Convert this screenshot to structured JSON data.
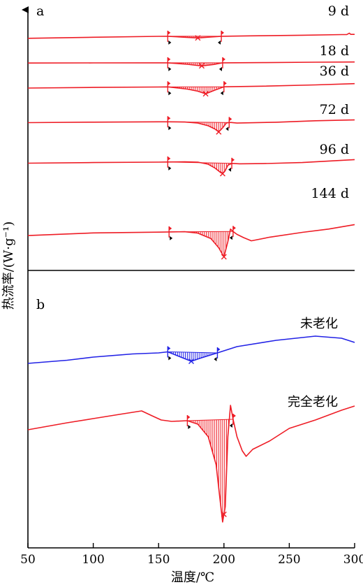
{
  "chart_data": {
    "type": "line",
    "xlabel": "温度/℃",
    "ylabel": "热流率/(W·g⁻¹)",
    "xlim": [
      50,
      300
    ],
    "x_ticks": [
      50,
      100,
      150,
      200,
      250,
      300
    ],
    "grid": false,
    "colors": {
      "red": "#ee1c25",
      "blue": "#2222e6",
      "axis": "#000000",
      "marker": "#000000"
    },
    "panels": [
      {
        "label": "a",
        "series": [
          {
            "name": "9 d",
            "color": "#ee1c25",
            "onset": 157,
            "peak": 180,
            "end": 198,
            "points": [
              [
                50,
                3.5
              ],
              [
                100,
                4.5
              ],
              [
                150,
                5.3
              ],
              [
                157,
                5.4
              ],
              [
                170,
                4.5
              ],
              [
                180,
                3.8
              ],
              [
                190,
                4.7
              ],
              [
                198,
                5.4
              ],
              [
                220,
                5.8
              ],
              [
                260,
                6.4
              ],
              [
                290,
                7.0
              ],
              [
                294,
                7.1
              ],
              [
                296,
                8.4
              ],
              [
                297,
                7.2
              ],
              [
                300,
                7.2
              ]
            ]
          },
          {
            "name": "18 d",
            "color": "#ee1c25",
            "onset": 157,
            "peak": 183,
            "end": 199,
            "points": [
              [
                50,
                3.2
              ],
              [
                100,
                3.3
              ],
              [
                150,
                3.4
              ],
              [
                157,
                3.4
              ],
              [
                172,
                2.0
              ],
              [
                183,
                0.5
              ],
              [
                192,
                1.8
              ],
              [
                199,
                3.4
              ],
              [
                230,
                3.6
              ],
              [
                270,
                4.0
              ],
              [
                300,
                4.2
              ]
            ]
          },
          {
            "name": "36 d",
            "color": "#ee1c25",
            "onset": 157,
            "peak": 186,
            "end": 200,
            "points": [
              [
                50,
                4.0
              ],
              [
                100,
                4.6
              ],
              [
                150,
                5.0
              ],
              [
                157,
                5.1
              ],
              [
                172,
                3.0
              ],
              [
                180,
                1.0
              ],
              [
                186,
                -1.5
              ],
              [
                193,
                2.0
              ],
              [
                200,
                5.2
              ],
              [
                230,
                5.8
              ],
              [
                270,
                7.0
              ],
              [
                300,
                8.2
              ]
            ]
          },
          {
            "name": "72 d",
            "color": "#ee1c25",
            "onset": 157,
            "peak": 196,
            "end": 204,
            "points": [
              [
                50,
                3.0
              ],
              [
                100,
                3.5
              ],
              [
                150,
                3.8
              ],
              [
                157,
                3.8
              ],
              [
                170,
                3.6
              ],
              [
                180,
                2.6
              ],
              [
                188,
                0.0
              ],
              [
                193,
                -3.0
              ],
              [
                196,
                -5.8
              ],
              [
                199,
                -2.0
              ],
              [
                202,
                2.8
              ],
              [
                205,
                3.2
              ],
              [
                210,
                2.6
              ],
              [
                240,
                3.4
              ],
              [
                270,
                4.8
              ],
              [
                300,
                5.6
              ]
            ]
          },
          {
            "name": "96 d",
            "color": "#ee1c25",
            "onset": 157,
            "peak": 199,
            "end": 206,
            "points": [
              [
                50,
                3.0
              ],
              [
                100,
                3.6
              ],
              [
                150,
                4.0
              ],
              [
                157,
                4.1
              ],
              [
                170,
                4.3
              ],
              [
                180,
                4.0
              ],
              [
                188,
                2.0
              ],
              [
                193,
                -1.5
              ],
              [
                197,
                -5.5
              ],
              [
                199,
                -7.0
              ],
              [
                201,
                -4.0
              ],
              [
                203,
                1.0
              ],
              [
                206,
                2.8
              ],
              [
                212,
                2.4
              ],
              [
                230,
                2.6
              ],
              [
                260,
                3.6
              ],
              [
                300,
                6.4
              ]
            ]
          },
          {
            "name": "144 d",
            "color": "#ee1c25",
            "onset": 158,
            "peak": 200,
            "end": 207,
            "points": [
              [
                50,
                1.0
              ],
              [
                100,
                2.3
              ],
              [
                150,
                2.7
              ],
              [
                158,
                2.8
              ],
              [
                170,
                2.9
              ],
              [
                180,
                2.2
              ],
              [
                190,
                -0.5
              ],
              [
                196,
                -5.0
              ],
              [
                200,
                -9.5
              ],
              [
                203,
                -2.0
              ],
              [
                205,
                4.2
              ],
              [
                207,
                3.0
              ],
              [
                210,
                1.6
              ],
              [
                215,
                0.0
              ],
              [
                221,
                -1.6
              ],
              [
                235,
                0.2
              ],
              [
                260,
                2.6
              ],
              [
                280,
                4.2
              ],
              [
                300,
                6.4
              ]
            ]
          }
        ]
      },
      {
        "label": "b",
        "series": [
          {
            "name": "未老化",
            "color": "#2222e6",
            "onset": 157,
            "peak": 175,
            "end": 195,
            "points": [
              [
                50,
                0.0
              ],
              [
                80,
                0.3
              ],
              [
                100,
                0.6
              ],
              [
                130,
                0.9
              ],
              [
                150,
                1.0
              ],
              [
                157,
                1.1
              ],
              [
                165,
                0.7
              ],
              [
                175,
                0.2
              ],
              [
                182,
                0.5
              ],
              [
                195,
                1.0
              ],
              [
                210,
                1.6
              ],
              [
                240,
                2.2
              ],
              [
                270,
                2.6
              ],
              [
                290,
                2.4
              ],
              [
                300,
                2.0
              ]
            ]
          },
          {
            "name": "完全老化",
            "color": "#ee1c25",
            "onset": 172,
            "peak": 200,
            "end": 207,
            "points": [
              [
                50,
                -4.0
              ],
              [
                80,
                -3.0
              ],
              [
                100,
                -2.4
              ],
              [
                120,
                -1.8
              ],
              [
                137,
                -1.3
              ],
              [
                145,
                -2.0
              ],
              [
                152,
                -2.6
              ],
              [
                160,
                -2.8
              ],
              [
                172,
                -2.7
              ],
              [
                180,
                -3.2
              ],
              [
                188,
                -5.0
              ],
              [
                194,
                -9.0
              ],
              [
                197,
                -14.0
              ],
              [
                199,
                -17.2
              ],
              [
                201,
                -15.0
              ],
              [
                203,
                -5.0
              ],
              [
                205,
                -0.5
              ],
              [
                207,
                -2.5
              ],
              [
                210,
                -5.0
              ],
              [
                214,
                -7.0
              ],
              [
                217,
                -7.8
              ],
              [
                222,
                -6.8
              ],
              [
                235,
                -5.6
              ],
              [
                250,
                -3.8
              ],
              [
                270,
                -2.6
              ],
              [
                290,
                -1.2
              ],
              [
                300,
                -0.6
              ]
            ]
          }
        ]
      }
    ]
  }
}
